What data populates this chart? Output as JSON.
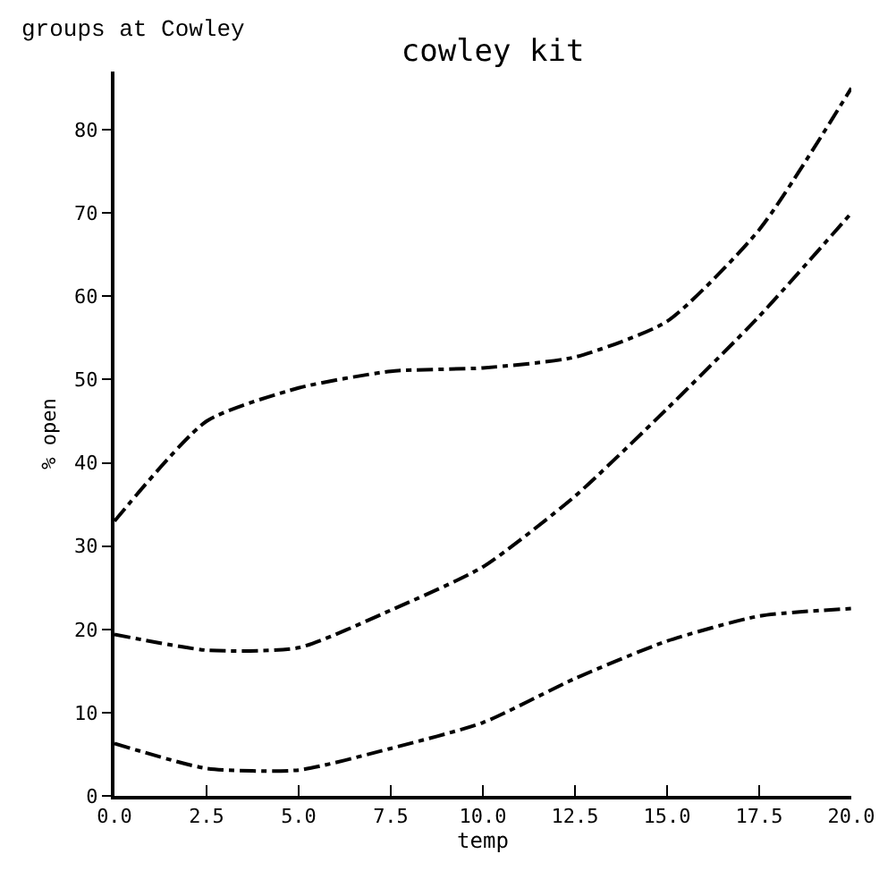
{
  "chart_data": {
    "type": "line",
    "title": "cowley kit",
    "xlabel": "temp",
    "ylabel": "% open",
    "annotations": [
      "groups at Cowley"
    ],
    "x": [
      0,
      2.5,
      5,
      7.5,
      10,
      12.5,
      15,
      17.5,
      20
    ],
    "series": [
      {
        "color": "#000000",
        "values": [
          33,
          45,
          49,
          51,
          51.4,
          52.7,
          57,
          68,
          85
        ]
      },
      {
        "color": "#000000",
        "values": [
          19.4,
          17.5,
          17.8,
          22.3,
          27.5,
          36,
          46.5,
          57.6,
          70
        ]
      },
      {
        "color": "#000000",
        "values": [
          6.3,
          3.3,
          3.1,
          5.7,
          8.8,
          14.1,
          18.6,
          21.6,
          22.5
        ]
      }
    ],
    "xlim": [
      0,
      20
    ],
    "xticks": [
      {
        "value": 0,
        "label": "0.0"
      },
      {
        "value": 2.5,
        "label": "2.5"
      },
      {
        "value": 5,
        "label": "5.0"
      },
      {
        "value": 7.5,
        "label": "7.5"
      },
      {
        "value": 10,
        "label": "10.0"
      },
      {
        "value": 12.5,
        "label": "12.5"
      },
      {
        "value": 15,
        "label": "15.0"
      },
      {
        "value": 17.5,
        "label": "17.5"
      },
      {
        "value": 20,
        "label": "20.0"
      }
    ],
    "ylim": [
      0,
      87
    ],
    "yticks": [
      0,
      10,
      20,
      30,
      40,
      50,
      60,
      70,
      80
    ],
    "grid": false,
    "marker": "none",
    "line_style": "dashed"
  }
}
